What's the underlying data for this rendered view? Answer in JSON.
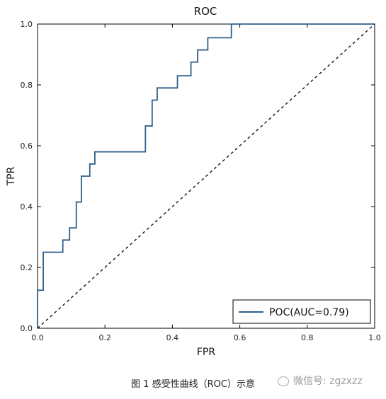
{
  "chart_data": {
    "type": "line",
    "title": "ROC",
    "xlabel": "FPR",
    "ylabel": "TPR",
    "xlim": [
      0.0,
      1.0
    ],
    "ylim": [
      0.0,
      1.0
    ],
    "xticks": [
      "0.0",
      "0.2",
      "0.4",
      "0.6",
      "0.8",
      "1.0"
    ],
    "yticks": [
      "0.0",
      "0.2",
      "0.4",
      "0.6",
      "0.8",
      "1.0"
    ],
    "grid": false,
    "legend_position": "lower-right",
    "series": [
      {
        "name": "POC(AUC=0.79)",
        "color": "#2f5f8a",
        "style": "solid",
        "x": [
          0.0,
          0.0,
          0.017,
          0.017,
          0.075,
          0.075,
          0.095,
          0.095,
          0.115,
          0.115,
          0.13,
          0.13,
          0.155,
          0.155,
          0.17,
          0.17,
          0.32,
          0.32,
          0.34,
          0.34,
          0.355,
          0.355,
          0.415,
          0.415,
          0.455,
          0.455,
          0.475,
          0.475,
          0.505,
          0.505,
          0.575,
          0.575,
          1.0
        ],
        "y": [
          0.0,
          0.125,
          0.125,
          0.25,
          0.25,
          0.29,
          0.29,
          0.33,
          0.33,
          0.415,
          0.415,
          0.5,
          0.5,
          0.54,
          0.54,
          0.58,
          0.58,
          0.665,
          0.665,
          0.75,
          0.75,
          0.79,
          0.79,
          0.83,
          0.83,
          0.875,
          0.875,
          0.915,
          0.915,
          0.955,
          0.955,
          1.0,
          1.0
        ]
      },
      {
        "color": "#111111",
        "style": "dashed",
        "x": [
          0.0,
          1.0
        ],
        "y": [
          0.0,
          1.0
        ]
      }
    ]
  },
  "caption": "图 1 感受性曲线（ROC）示意",
  "watermark": "微信号: zgzxzz"
}
